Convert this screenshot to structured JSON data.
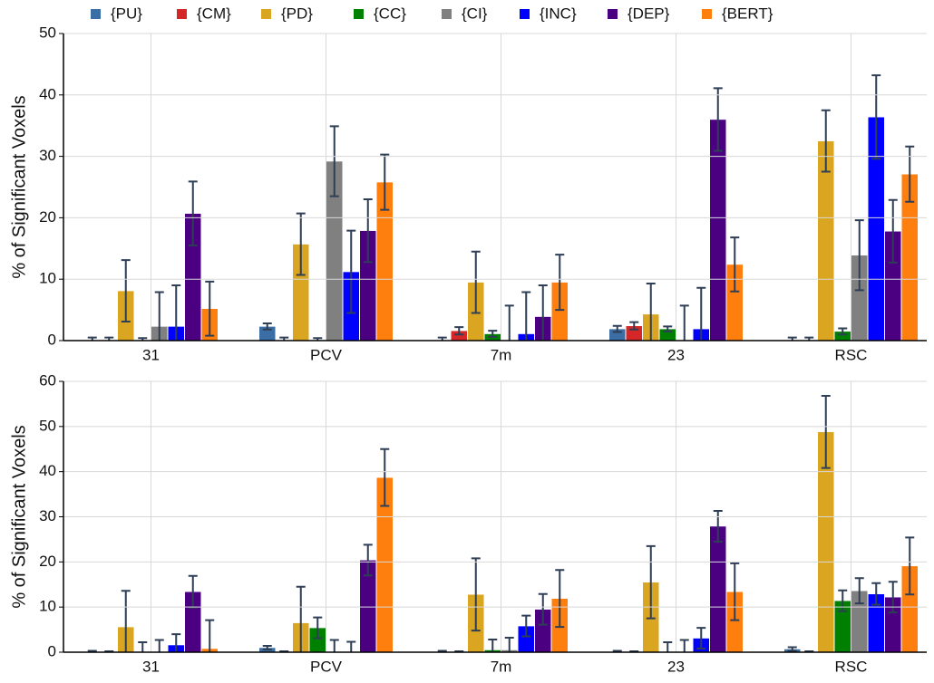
{
  "chart_data": [
    {
      "type": "bar",
      "ylabel": "% of Significant Voxels",
      "categories": [
        "31",
        "PCV",
        "7m",
        "23",
        "RSC"
      ],
      "ylim": [
        0,
        50
      ],
      "yticks": [
        0,
        10,
        20,
        30,
        40,
        50
      ],
      "grid": true,
      "error_color": "#2e3f55",
      "series": [
        {
          "name": "{PU}",
          "color": "#3a6ea5",
          "values": [
            0,
            2.3,
            0,
            1.9,
            0
          ],
          "errors": [
            0.5,
            0.5,
            0.5,
            0.5,
            0.5
          ]
        },
        {
          "name": "{CM}",
          "color": "#d62728",
          "values": [
            0,
            0,
            1.6,
            2.4,
            0
          ],
          "errors": [
            0.5,
            0.5,
            0.6,
            0.6,
            0.5
          ]
        },
        {
          "name": "{PD}",
          "color": "#daa520",
          "values": [
            8.1,
            15.7,
            9.5,
            4.3,
            32.5
          ],
          "errors": [
            5,
            5,
            5,
            5,
            5
          ]
        },
        {
          "name": "{CC}",
          "color": "#008000",
          "values": [
            0,
            0,
            1.1,
            1.9,
            1.5
          ],
          "errors": [
            0.4,
            0.4,
            0.5,
            0.4,
            0.5
          ]
        },
        {
          "name": "{CI}",
          "color": "#808080",
          "values": [
            2.3,
            29.2,
            0,
            0,
            13.9
          ],
          "errors": [
            5.6,
            5.7,
            5.7,
            5.7,
            5.7
          ]
        },
        {
          "name": "{INC}",
          "color": "#0000ff",
          "values": [
            2.3,
            11.2,
            1.1,
            1.9,
            36.4
          ],
          "errors": [
            6.7,
            6.7,
            6.8,
            6.7,
            6.8
          ]
        },
        {
          "name": "{DEP}",
          "color": "#4b0082",
          "values": [
            20.7,
            17.9,
            3.9,
            36,
            17.8
          ],
          "errors": [
            5.2,
            5.1,
            5.1,
            5.1,
            5.1
          ]
        },
        {
          "name": "{BERT}",
          "color": "#ff7f0e",
          "values": [
            5.2,
            25.8,
            9.5,
            12.4,
            27.1
          ],
          "errors": [
            4.4,
            4.5,
            4.5,
            4.4,
            4.5
          ]
        }
      ]
    },
    {
      "type": "bar",
      "ylabel": "% of Significant Voxels",
      "categories": [
        "31",
        "PCV",
        "7m",
        "23",
        "RSC"
      ],
      "ylim": [
        0,
        60
      ],
      "yticks": [
        0,
        10,
        20,
        30,
        40,
        50,
        60
      ],
      "grid": true,
      "error_color": "#2e3f55",
      "series": [
        {
          "color": "#3a6ea5",
          "values": [
            0,
            1,
            0,
            0,
            0.7
          ],
          "errors": [
            0.3,
            0.4,
            0.3,
            0.3,
            0.4
          ]
        },
        {
          "color": "#d62728",
          "values": [
            0,
            0,
            0,
            0,
            0
          ],
          "errors": [
            0.2,
            0.2,
            0.2,
            0.2,
            0.2
          ]
        },
        {
          "color": "#daa520",
          "values": [
            5.6,
            6.5,
            12.8,
            15.5,
            48.8
          ],
          "errors": [
            8,
            8,
            8,
            8,
            8
          ]
        },
        {
          "color": "#008000",
          "values": [
            0,
            5.4,
            0.5,
            0,
            11.4
          ],
          "errors": [
            2.2,
            2.3,
            2.3,
            2.2,
            2.3
          ]
        },
        {
          "color": "#808080",
          "values": [
            0,
            0,
            0.5,
            0,
            13.6
          ],
          "errors": [
            2.7,
            2.7,
            2.7,
            2.7,
            2.8
          ]
        },
        {
          "color": "#0000ff",
          "values": [
            1.6,
            0,
            5.8,
            3.1,
            12.9
          ],
          "errors": [
            2.4,
            2.3,
            2.3,
            2.3,
            2.4
          ]
        },
        {
          "color": "#4b0082",
          "values": [
            13.4,
            20.4,
            9.5,
            27.9,
            12.2
          ],
          "errors": [
            3.5,
            3.4,
            3.4,
            3.4,
            3.4
          ]
        },
        {
          "color": "#ff7f0e",
          "values": [
            0.8,
            38.7,
            11.9,
            13.4,
            19.1
          ],
          "errors": [
            6.3,
            6.3,
            6.3,
            6.3,
            6.3
          ]
        }
      ]
    }
  ]
}
